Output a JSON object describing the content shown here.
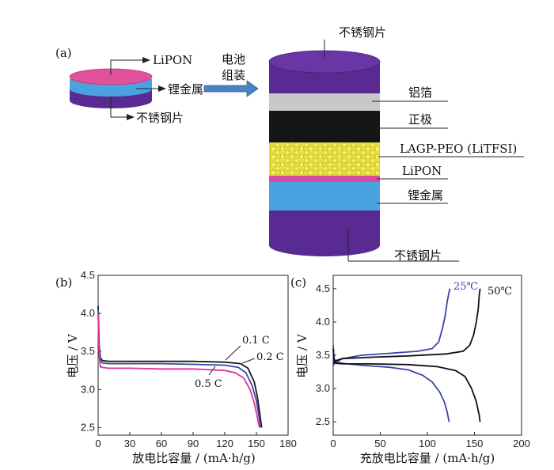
{
  "figure": {
    "panel_a": {
      "panel_label": "(a)",
      "small_cell_labels": [
        "LiPON",
        "锂金属",
        "不锈钢片"
      ],
      "assembly_label_line1": "电池",
      "assembly_label_line2": "组装",
      "stack_layers": [
        {
          "label": "不锈钢片",
          "color": "#5a2a93"
        },
        {
          "label": "铝箔",
          "color": "#c8c8c8"
        },
        {
          "label": "正极",
          "color": "#151515"
        },
        {
          "label": "LAGP-PEO (LiTFSI)",
          "color": "#e8e13a"
        },
        {
          "label": "LiPON",
          "color": "#d94aa3"
        },
        {
          "label": "锂金属",
          "color": "#4aa3e0"
        },
        {
          "label": "不锈钢片",
          "color": "#5a2a93"
        }
      ]
    }
  },
  "chart_data": [
    {
      "type": "line",
      "panel_label": "(b)",
      "xlabel": "放电比容量 / (mA·h/g)",
      "ylabel": "电压 / V",
      "xlim": [
        0,
        180
      ],
      "ylim": [
        2.4,
        4.5
      ],
      "xticks": [
        "0",
        "30",
        "60",
        "90",
        "120",
        "150",
        "180"
      ],
      "yticks": [
        "2.5",
        "3.0",
        "3.5",
        "4.0",
        "4.5"
      ],
      "series": [
        {
          "name": "0.1 C",
          "color": "#1a1a1a",
          "x": [
            0,
            1,
            2,
            4,
            10,
            30,
            60,
            90,
            120,
            135,
            142,
            148,
            151,
            153,
            154.5,
            155
          ],
          "y": [
            4.1,
            3.6,
            3.42,
            3.38,
            3.37,
            3.37,
            3.37,
            3.37,
            3.36,
            3.34,
            3.28,
            3.1,
            2.9,
            2.7,
            2.55,
            2.5
          ]
        },
        {
          "name": "0.2 C",
          "color": "#3a48a8",
          "x": [
            0,
            1,
            2,
            4,
            10,
            30,
            60,
            90,
            120,
            133,
            140,
            146,
            150,
            152,
            153.5,
            154
          ],
          "y": [
            4.05,
            3.55,
            3.38,
            3.35,
            3.34,
            3.34,
            3.34,
            3.33,
            3.32,
            3.29,
            3.22,
            3.05,
            2.85,
            2.68,
            2.55,
            2.5
          ]
        },
        {
          "name": "0.5 C",
          "color": "#e0309a",
          "x": [
            0,
            1,
            2,
            4,
            10,
            30,
            60,
            90,
            120,
            130,
            138,
            144,
            148,
            150.5,
            152,
            153
          ],
          "y": [
            4.0,
            3.45,
            3.3,
            3.29,
            3.28,
            3.28,
            3.27,
            3.27,
            3.25,
            3.22,
            3.15,
            3.0,
            2.82,
            2.66,
            2.55,
            2.5
          ]
        }
      ],
      "annotations": [
        "0.1 C",
        "0.2 C",
        "0.5 C"
      ]
    },
    {
      "type": "line",
      "panel_label": "(c)",
      "xlabel": "充放电比容量 / (mA·h/g)",
      "ylabel": "电压 / V",
      "xlim": [
        0,
        200
      ],
      "ylim": [
        2.3,
        4.7
      ],
      "xticks": [
        "0",
        "50",
        "100",
        "150",
        "200"
      ],
      "yticks": [
        "2.5",
        "3.0",
        "3.5",
        "4.0",
        "4.5"
      ],
      "series": [
        {
          "name": "25℃",
          "color": "#3b44a8",
          "charge": {
            "x": [
              0,
              3,
              10,
              30,
              60,
              90,
              105,
              112,
              116,
              119,
              121,
              123,
              124
            ],
            "y": [
              3.35,
              3.4,
              3.45,
              3.5,
              3.53,
              3.56,
              3.6,
              3.7,
              3.9,
              4.1,
              4.3,
              4.45,
              4.5
            ]
          },
          "discharge": {
            "x": [
              0,
              1,
              3,
              10,
              30,
              60,
              80,
              95,
              105,
              113,
              118,
              121,
              123
            ],
            "y": [
              3.65,
              3.45,
              3.4,
              3.38,
              3.35,
              3.32,
              3.28,
              3.2,
              3.1,
              2.95,
              2.8,
              2.65,
              2.5
            ]
          }
        },
        {
          "name": "50℃",
          "color": "#111111",
          "charge": {
            "x": [
              0,
              3,
              10,
              40,
              80,
              120,
              138,
              145,
              149,
              152,
              154,
              155,
              156
            ],
            "y": [
              3.38,
              3.42,
              3.45,
              3.47,
              3.49,
              3.52,
              3.56,
              3.65,
              3.8,
              4.0,
              4.2,
              4.4,
              4.5
            ]
          },
          "discharge": {
            "x": [
              0,
              1,
              3,
              10,
              40,
              80,
              110,
              130,
              140,
              147,
              152,
              155,
              156
            ],
            "y": [
              3.6,
              3.42,
              3.38,
              3.37,
              3.37,
              3.36,
              3.33,
              3.27,
              3.18,
              3.0,
              2.8,
              2.6,
              2.5
            ]
          }
        }
      ],
      "annotations": [
        "25℃",
        "50℃"
      ]
    }
  ]
}
